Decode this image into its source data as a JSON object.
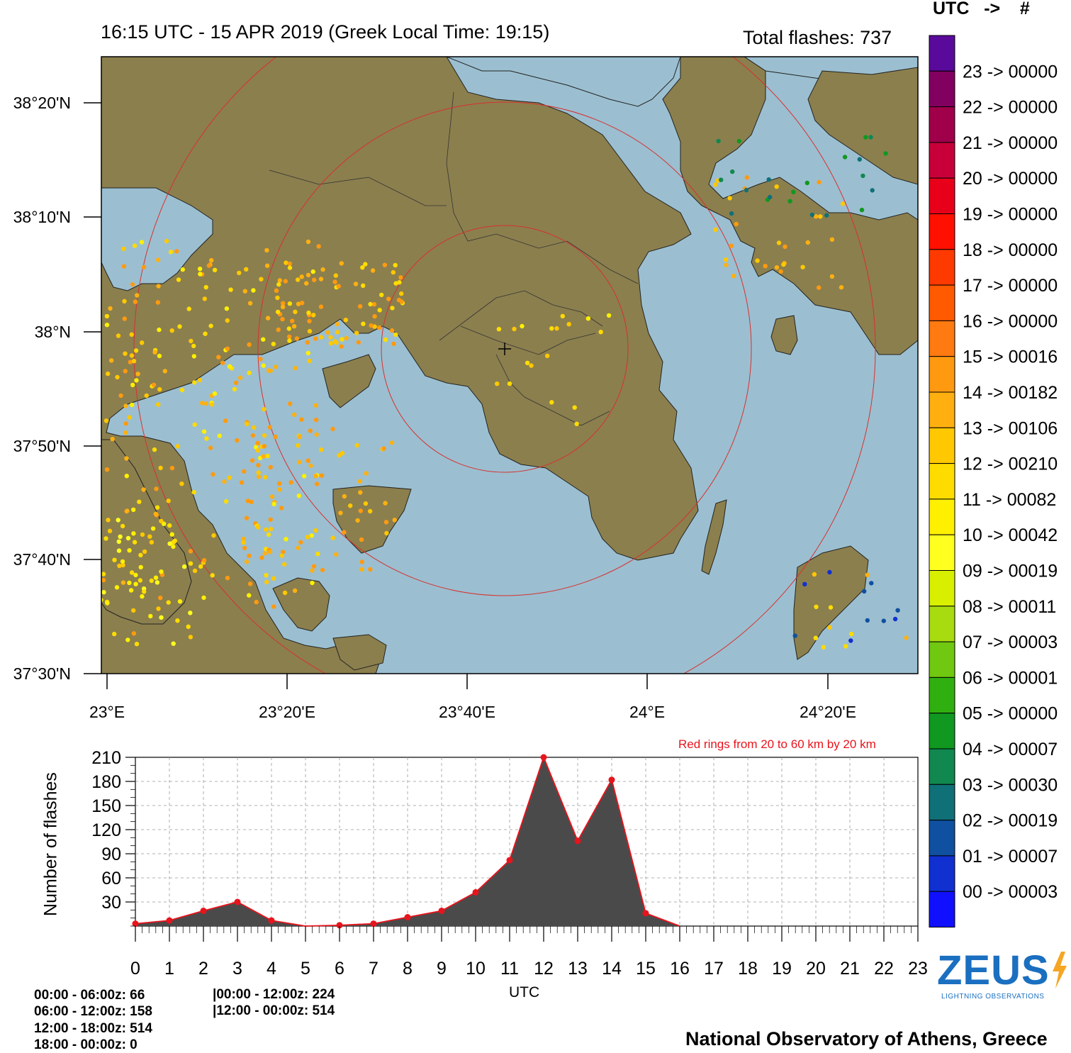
{
  "header": {
    "title": "16:15 UTC - 15  APR 2019 (Greek Local Time: 19:15)",
    "total_flashes": "Total flashes: 737"
  },
  "legend": {
    "header": "UTC   ->    #",
    "entries": [
      {
        "label": "23 -> 00000",
        "color": "#5a0a9a"
      },
      {
        "label": "22 -> 00000",
        "color": "#820060"
      },
      {
        "label": "21 -> 00000",
        "color": "#a0004a"
      },
      {
        "label": "20 -> 00000",
        "color": "#c8003a"
      },
      {
        "label": "19 -> 00000",
        "color": "#e8001a"
      },
      {
        "label": "18 -> 00000",
        "color": "#ff1000"
      },
      {
        "label": "17 -> 00000",
        "color": "#ff3a00"
      },
      {
        "label": "16 -> 00000",
        "color": "#ff5a00"
      },
      {
        "label": "15 -> 00016",
        "color": "#ff7a10"
      },
      {
        "label": "14 -> 00182",
        "color": "#ff9a10"
      },
      {
        "label": "13 -> 00106",
        "color": "#ffb010"
      },
      {
        "label": "12 -> 00210",
        "color": "#ffc800"
      },
      {
        "label": "11 -> 00082",
        "color": "#ffdc00"
      },
      {
        "label": "10 -> 00042",
        "color": "#fff000"
      },
      {
        "label": "09 -> 00019",
        "color": "#ffff20"
      },
      {
        "label": "08 -> 00011",
        "color": "#d8f000"
      },
      {
        "label": "07 -> 00003",
        "color": "#a8dc10"
      },
      {
        "label": "06 -> 00001",
        "color": "#70c810"
      },
      {
        "label": "05 -> 00000",
        "color": "#30b010"
      },
      {
        "label": "04 -> 00007",
        "color": "#109820"
      },
      {
        "label": "03 -> 00030",
        "color": "#108850"
      },
      {
        "label": "02 -> 00019",
        "color": "#107078"
      },
      {
        "label": "01 -> 00007",
        "color": "#1050a0"
      },
      {
        "label": "00 -> 00003",
        "color": "#1030d0"
      },
      {
        "label": "",
        "color": "#1010ff"
      }
    ]
  },
  "map": {
    "lat_labels": [
      "38°20'N",
      "38°10'N",
      "38°N",
      "37°50'N",
      "37°40'N",
      "37°30'N"
    ],
    "lon_labels": [
      "23°E",
      "23°20'E",
      "23°40'E",
      "24°E",
      "24°20'E"
    ],
    "land_color": "#8b7f4e",
    "sea_color": "#9bbfd0",
    "ring_color": "#d83030",
    "rings_note": "Red rings from 20 to 60 km by 20 km"
  },
  "chart_data": {
    "type": "area",
    "xlabel": "UTC",
    "ylabel": "Number of flashes",
    "x": [
      0,
      1,
      2,
      3,
      4,
      5,
      6,
      7,
      8,
      9,
      10,
      11,
      12,
      13,
      14,
      15,
      16,
      17,
      18,
      19,
      20,
      21,
      22,
      23
    ],
    "values": [
      3,
      7,
      19,
      30,
      7,
      0,
      1,
      3,
      11,
      19,
      42,
      82,
      210,
      106,
      182,
      16,
      0,
      0,
      0,
      0,
      0,
      0,
      0,
      0
    ],
    "yticks": [
      30,
      60,
      90,
      120,
      150,
      180,
      210
    ],
    "ylim": [
      0,
      210
    ],
    "grid": true,
    "fill_color": "#4a4a4a",
    "line_color": "#e8141c"
  },
  "stats": {
    "six_hour": [
      "00:00 - 06:00z: 66",
      "06:00 - 12:00z: 158",
      "12:00 - 18:00z: 514",
      "18:00 - 00:00z: 0"
    ],
    "twelve_hour": [
      "|00:00 - 12:00z: 224",
      "|12:00 - 00:00z: 514"
    ]
  },
  "logo": {
    "text": "ZEUS",
    "subtitle": "LIGHTNING OBSERVATIONS"
  },
  "footer": {
    "credit": "National Observatory of Athens, Greece"
  }
}
